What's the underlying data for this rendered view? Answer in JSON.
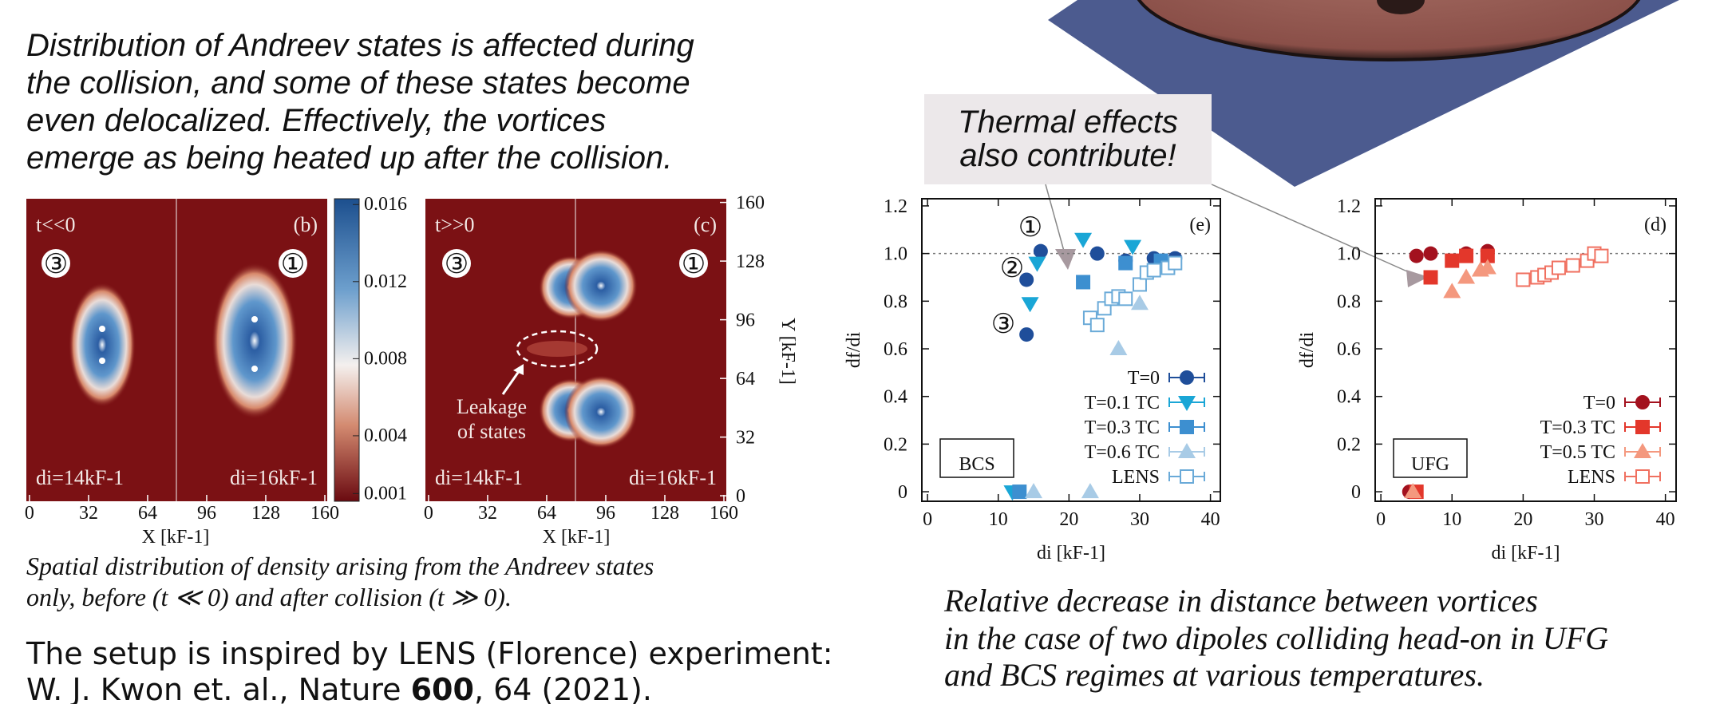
{
  "intro": [
    "Distribution of Andreev states is affected during",
    "the collision, and some of these states become",
    "even delocalized. Effectively, the vortices",
    "emerge as being heated up after the collision."
  ],
  "heatmaps": {
    "panels": [
      {
        "label": "(b)",
        "time": "t<<0",
        "left_marker": "③",
        "right_marker": "①",
        "left_di": "di=14kF-1",
        "right_di": "di=16kF-1"
      },
      {
        "label": "(c)",
        "time": "t>>0",
        "left_marker": "③",
        "right_marker": "①",
        "left_di": "di=14kF-1",
        "right_di": "di=16kF-1",
        "annotation": [
          "Leakage",
          "of states"
        ]
      }
    ],
    "xlabel": "X [kF-1]",
    "ylabel": "Y [kF-1]",
    "xlim": [
      -1.7,
      161.3
    ],
    "xticks": [
      0,
      32,
      64,
      96,
      128,
      160
    ],
    "ylim": [
      -3,
      162
    ],
    "yticks": [
      0,
      32,
      64,
      96,
      128,
      160
    ],
    "colorbar": {
      "clim": [
        0.0006,
        0.0163
      ],
      "ticks": [
        0.001,
        0.004,
        0.008,
        0.012,
        0.016
      ]
    },
    "caption": [
      "Spatial distribution of density arising from the Andreev states",
      "only, before (t ≪ 0) and after collision (t ≫ 0)."
    ]
  },
  "reference": {
    "line1": "The setup is inspired by LENS (Florence) experiment:",
    "before": "W. J. Kwon et. al., Nature ",
    "bold": "600",
    "after": ", 64 (2021)."
  },
  "callout": [
    "Thermal effects",
    "also contribute!"
  ],
  "chart_data": [
    {
      "type": "scatter",
      "panel": "(e)",
      "regime": "BCS",
      "xlabel": "di [kF-1]",
      "ylabel": "df/di",
      "xlim": [
        -0.8,
        41.4
      ],
      "ylim": [
        -0.04,
        1.23
      ],
      "xticks": [
        0,
        10,
        20,
        30,
        40
      ],
      "yticks": [
        0,
        0.2,
        0.4,
        0.6,
        0.8,
        {
          "value": 1,
          "label": "1.0"
        },
        1.2
      ],
      "reference_line": 1,
      "legend": "lower right",
      "annotations": [
        "①",
        "②",
        "③"
      ],
      "series": [
        {
          "name": "T=0",
          "color": "#1f4e9a",
          "marker": "circle",
          "x": [
            14,
            14,
            16,
            24,
            28,
            32,
            35
          ],
          "values": [
            0.66,
            0.89,
            1.01,
            1.0,
            0.97,
            0.98,
            0.98
          ]
        },
        {
          "name": "T=0.1 TC",
          "color": "#1aa6d6",
          "marker": "triangle-down",
          "x": [
            12,
            14.5,
            15.5,
            22,
            29
          ],
          "values": [
            0,
            0.79,
            0.96,
            1.06,
            1.03
          ]
        },
        {
          "name": "T=0.3 TC",
          "color": "#3d8fd0",
          "marker": "square",
          "x": [
            13,
            22,
            28,
            33
          ],
          "values": [
            0,
            0.88,
            0.96,
            0.97
          ]
        },
        {
          "name": "T=0.6 TC",
          "color": "#a8cbe6",
          "marker": "triangle-up",
          "x": [
            15,
            23,
            27,
            30
          ],
          "values": [
            0,
            0,
            0.6,
            0.79
          ]
        },
        {
          "name": "LENS",
          "color": "#6aaad8",
          "marker": "open-square",
          "x": [
            23,
            24,
            25,
            26,
            27,
            28,
            30,
            31,
            32,
            34,
            35
          ],
          "values": [
            0.73,
            0.7,
            0.77,
            0.81,
            0.82,
            0.81,
            0.87,
            0.92,
            0.93,
            0.94,
            0.96
          ]
        }
      ]
    },
    {
      "type": "scatter",
      "panel": "(d)",
      "regime": "UFG",
      "xlabel": "di [kF-1]",
      "ylabel": "df/di",
      "xlim": [
        -0.8,
        41.5
      ],
      "ylim": [
        -0.04,
        1.23
      ],
      "xticks": [
        0,
        10,
        20,
        30,
        40
      ],
      "yticks": [
        0,
        0.2,
        0.4,
        0.6,
        0.8,
        {
          "value": 1,
          "label": "1.0"
        },
        1.2
      ],
      "reference_line": 1,
      "legend": "lower right",
      "series": [
        {
          "name": "T=0",
          "color": "#a3111e",
          "marker": "circle",
          "x": [
            4,
            5,
            7,
            12,
            15
          ],
          "values": [
            0,
            0.99,
            1.0,
            1.0,
            1.01
          ]
        },
        {
          "name": "T=0.3 TC",
          "color": "#e3372b",
          "marker": "square",
          "x": [
            5,
            7,
            10,
            12,
            15
          ],
          "values": [
            0,
            0.9,
            0.97,
            0.99,
            0.99
          ]
        },
        {
          "name": "T=0.5 TC",
          "color": "#f4987e",
          "marker": "triangle-up",
          "x": [
            4.5,
            10,
            12,
            14,
            15
          ],
          "values": [
            0,
            0.84,
            0.9,
            0.93,
            0.94
          ]
        },
        {
          "name": "LENS",
          "color": "#f07060",
          "marker": "open-square",
          "x": [
            20,
            22,
            23,
            24,
            25,
            27,
            29,
            30,
            31
          ],
          "values": [
            0.89,
            0.9,
            0.91,
            0.92,
            0.94,
            0.95,
            0.97,
            1.0,
            0.99
          ]
        }
      ]
    }
  ],
  "caption_right": [
    "Relative decrease in distance between vortices",
    "in the case of two dipoles colliding head-on in UFG",
    "and BCS regimes at various temperatures."
  ]
}
